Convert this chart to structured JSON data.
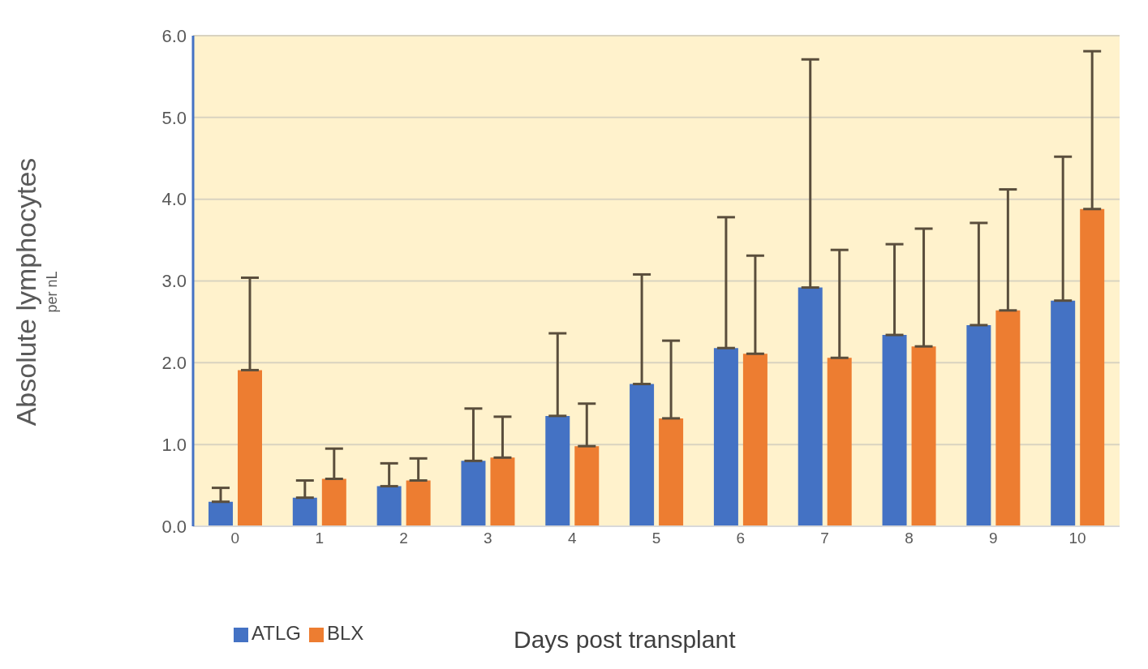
{
  "chart_data": {
    "type": "bar",
    "ylabel": "Absolute lymphocytes\nper nL",
    "xlabel": "Days post transplant",
    "categories": [
      "0",
      "1",
      "2",
      "3",
      "4",
      "5",
      "6",
      "7",
      "8",
      "9",
      "10"
    ],
    "series": [
      {
        "name": "ATLG",
        "color": "#4472c4",
        "values": [
          0.3,
          0.35,
          0.49,
          0.8,
          1.35,
          1.74,
          2.18,
          2.92,
          2.34,
          2.46,
          2.76
        ],
        "errors": [
          [
            0.3,
            0.47
          ],
          [
            0.35,
            0.56
          ],
          [
            0.49,
            0.77
          ],
          [
            0.8,
            1.44
          ],
          [
            1.35,
            2.36
          ],
          [
            1.74,
            3.08
          ],
          [
            2.18,
            3.78
          ],
          [
            2.92,
            5.71
          ],
          [
            2.34,
            3.45
          ],
          [
            2.46,
            3.71
          ],
          [
            2.76,
            4.52
          ]
        ]
      },
      {
        "name": "BLX",
        "color": "#ed7d31",
        "values": [
          1.91,
          0.58,
          0.56,
          0.84,
          0.98,
          1.32,
          2.11,
          2.06,
          2.2,
          2.64,
          3.88
        ],
        "errors": [
          [
            1.91,
            3.04
          ],
          [
            0.58,
            0.95
          ],
          [
            0.56,
            0.83
          ],
          [
            0.84,
            1.34
          ],
          [
            0.98,
            1.5
          ],
          [
            1.32,
            2.27
          ],
          [
            2.11,
            3.31
          ],
          [
            2.06,
            3.38
          ],
          [
            2.2,
            3.64
          ],
          [
            2.64,
            4.12
          ],
          [
            3.88,
            5.81
          ]
        ]
      }
    ],
    "ylim": [
      0,
      6
    ],
    "yticks": [
      {
        "value": 0,
        "label": "0.0"
      },
      {
        "value": 1,
        "label": "1.0"
      },
      {
        "value": 2,
        "label": "2.0"
      },
      {
        "value": 3,
        "label": "3.0"
      },
      {
        "value": 4,
        "label": "4.0"
      },
      {
        "value": 5,
        "label": "5.0"
      },
      {
        "value": 6,
        "label": "6.0"
      }
    ],
    "grid": "y",
    "legend": "bottom left"
  }
}
